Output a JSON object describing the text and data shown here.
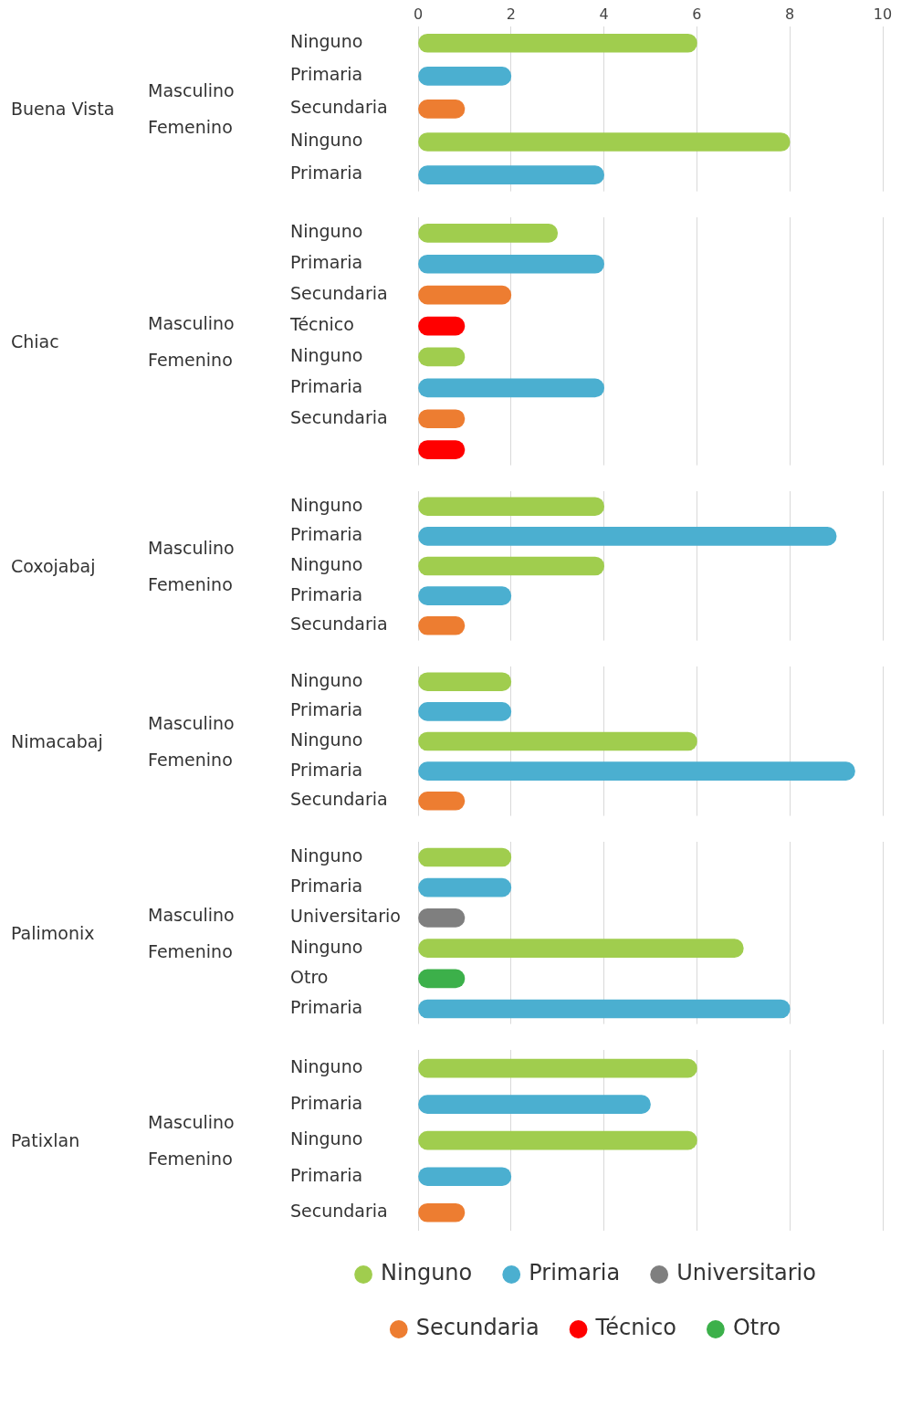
{
  "chart_data": [
    {
      "type": "bar",
      "orientation": "horizontal",
      "annotations": [
        "Buena Vista",
        "Masculino",
        "Femenino"
      ],
      "categories": [
        "Ninguno",
        "Primaria",
        "Secundaria",
        "Ninguno",
        "Primaria"
      ],
      "xlim": [
        0,
        10
      ],
      "xticks": [
        0,
        2,
        4,
        6,
        8,
        10
      ],
      "grid": "x",
      "legend": false,
      "series": [
        {
          "color": "#a0cd4e",
          "values": [
            6,
            null,
            null,
            8,
            null
          ]
        },
        {
          "color": "#4bafd0",
          "values": [
            null,
            2,
            null,
            null,
            4
          ]
        },
        {
          "color": "#ed7d31",
          "values": [
            null,
            null,
            1,
            null,
            null
          ]
        }
      ]
    },
    {
      "type": "bar",
      "orientation": "horizontal",
      "annotations": [
        "Chiac",
        "Masculino",
        "Femenino"
      ],
      "categories": [
        "Ninguno",
        "Primaria",
        "Secundaria",
        "Técnico",
        "Ninguno",
        "Primaria",
        "Secundaria",
        null
      ],
      "xlim": [
        0,
        10
      ],
      "xticks": [
        0,
        2,
        4,
        6,
        8,
        10
      ],
      "tick_labels": "y",
      "grid": "x",
      "legend": false,
      "series": [
        {
          "color": "#a0cd4e",
          "values": [
            3,
            null,
            null,
            null,
            1,
            null,
            null,
            null
          ]
        },
        {
          "color": "#4bafd0",
          "values": [
            null,
            4,
            null,
            null,
            null,
            4,
            null,
            null
          ]
        },
        {
          "color": "#ed7d31",
          "values": [
            null,
            null,
            2,
            null,
            null,
            null,
            1,
            null
          ]
        },
        {
          "color": "#ff0000",
          "values": [
            null,
            null,
            null,
            1,
            null,
            null,
            null,
            1
          ]
        }
      ]
    },
    {
      "type": "bar",
      "orientation": "horizontal",
      "annotations": [
        "Coxojabaj",
        "Masculino",
        "Femenino"
      ],
      "categories": [
        "Ninguno",
        "Primaria",
        "Ninguno",
        "Primaria",
        "Secundaria"
      ],
      "xlim": [
        0,
        10
      ],
      "xticks": [
        0,
        2,
        4,
        6,
        8,
        10
      ],
      "tick_labels": "y",
      "grid": "x",
      "legend": false,
      "series": [
        {
          "color": "#a0cd4e",
          "values": [
            4,
            null,
            4,
            null,
            null
          ]
        },
        {
          "color": "#4bafd0",
          "values": [
            null,
            9,
            null,
            2,
            null
          ]
        },
        {
          "color": "#ed7d31",
          "values": [
            null,
            null,
            null,
            null,
            1
          ]
        }
      ]
    },
    {
      "type": "bar",
      "orientation": "horizontal",
      "annotations": [
        "Nimacabaj",
        "Masculino",
        "Femenino"
      ],
      "categories": [
        "Ninguno",
        "Primaria",
        "Ninguno",
        "Primaria",
        "Secundaria"
      ],
      "xlim": [
        0,
        10
      ],
      "xticks": [
        0,
        2,
        4,
        6,
        8,
        10
      ],
      "tick_labels": "y",
      "grid": "x",
      "legend": false,
      "series": [
        {
          "color": "#a0cd4e",
          "values": [
            2,
            null,
            6,
            null,
            null
          ]
        },
        {
          "color": "#4bafd0",
          "values": [
            null,
            2,
            null,
            9.4,
            null
          ]
        },
        {
          "color": "#ed7d31",
          "values": [
            null,
            null,
            null,
            null,
            1
          ]
        }
      ]
    },
    {
      "type": "bar",
      "orientation": "horizontal",
      "annotations": [
        "Palimonix",
        "Masculino",
        "Femenino"
      ],
      "categories": [
        "Ninguno",
        "Primaria",
        "Universitario",
        "Ninguno",
        "Otro",
        "Primaria"
      ],
      "xlim": [
        0,
        10
      ],
      "xticks": [
        0,
        2,
        4,
        6,
        8,
        10
      ],
      "tick_labels": "y",
      "grid": "x",
      "legend": false,
      "series": [
        {
          "color": "#a0cd4e",
          "values": [
            2,
            null,
            null,
            7,
            null,
            null
          ]
        },
        {
          "color": "#4bafd0",
          "values": [
            null,
            2,
            null,
            null,
            null,
            8
          ]
        },
        {
          "color": "#7f7f7f",
          "values": [
            null,
            null,
            1,
            null,
            null,
            null
          ]
        },
        {
          "color": "#3cb04a",
          "values": [
            null,
            null,
            null,
            null,
            1,
            null
          ]
        }
      ]
    },
    {
      "type": "bar",
      "orientation": "horizontal",
      "annotations": [
        "Patixlan",
        "Masculino",
        "Femenino"
      ],
      "categories": [
        "Ninguno",
        "Primaria",
        "Ninguno",
        "Primaria",
        "Secundaria"
      ],
      "xlim": [
        0,
        10
      ],
      "xticks": [
        0,
        2,
        4,
        6,
        8,
        10
      ],
      "tick_labels": "y",
      "grid": "x",
      "legend": "bottom",
      "series": [
        {
          "name": "Ninguno",
          "color": "#a0cd4e",
          "values": [
            6,
            null,
            6,
            null,
            null
          ]
        },
        {
          "name": "Primaria",
          "color": "#4bafd0",
          "values": [
            null,
            5,
            null,
            2,
            null
          ]
        },
        {
          "name": "Universitario",
          "color": "#7f7f7f",
          "values": [
            null,
            null,
            null,
            null,
            null
          ]
        },
        {
          "name": "Secundaria",
          "color": "#ed7d31",
          "values": [
            null,
            null,
            null,
            null,
            1
          ]
        },
        {
          "name": "Técnico",
          "color": "#ff0000",
          "values": [
            null,
            null,
            null,
            null,
            null
          ]
        },
        {
          "name": "Otro",
          "color": "#3cb04a",
          "values": [
            null,
            null,
            null,
            null,
            null
          ]
        }
      ]
    }
  ]
}
